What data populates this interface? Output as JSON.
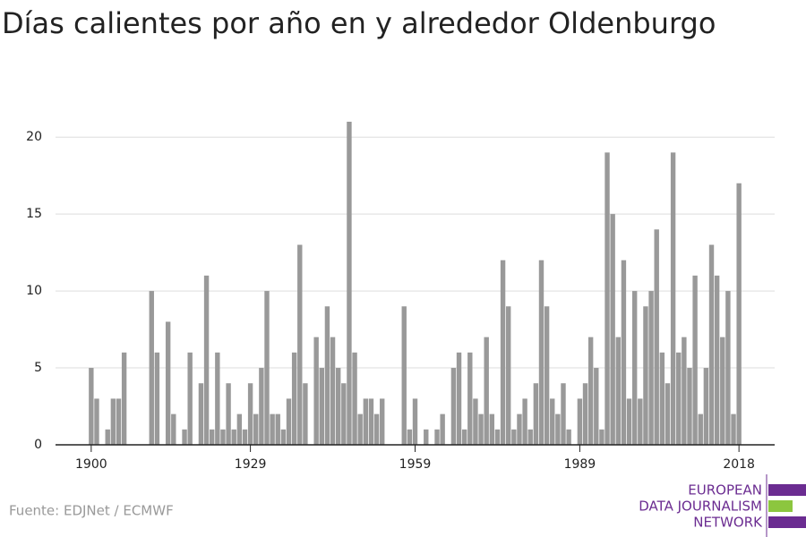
{
  "chart_data": {
    "type": "bar",
    "title": "Días calientes por año en y alrededor Oldenburgo",
    "source": "Fuente: EDJNet / ECMWF",
    "logo": [
      "EUROPEAN",
      "DATA JOURNALISM",
      "NETWORK"
    ],
    "color": "#999999",
    "x": [
      1900,
      1901,
      1902,
      1903,
      1904,
      1905,
      1906,
      1907,
      1908,
      1909,
      1910,
      1911,
      1912,
      1913,
      1914,
      1915,
      1916,
      1917,
      1918,
      1919,
      1920,
      1921,
      1922,
      1923,
      1924,
      1925,
      1926,
      1927,
      1928,
      1929,
      1930,
      1931,
      1932,
      1933,
      1934,
      1935,
      1936,
      1937,
      1938,
      1939,
      1940,
      1941,
      1942,
      1943,
      1944,
      1945,
      1946,
      1947,
      1948,
      1949,
      1950,
      1951,
      1952,
      1953,
      1954,
      1955,
      1956,
      1957,
      1958,
      1959,
      1960,
      1961,
      1962,
      1963,
      1964,
      1965,
      1966,
      1967,
      1968,
      1969,
      1970,
      1971,
      1972,
      1973,
      1974,
      1975,
      1976,
      1977,
      1978,
      1979,
      1980,
      1981,
      1982,
      1983,
      1984,
      1985,
      1986,
      1987,
      1988,
      1989,
      1990,
      1991,
      1992,
      1993,
      1994,
      1995,
      1996,
      1997,
      1998,
      1999,
      2000,
      2001,
      2002,
      2003,
      2004,
      2005,
      2006,
      2007,
      2008,
      2009,
      2010,
      2011,
      2012,
      2013,
      2014,
      2015,
      2016,
      2017,
      2018
    ],
    "values": [
      5,
      3,
      0,
      1,
      3,
      3,
      6,
      0,
      0,
      0,
      0,
      10,
      6,
      0,
      8,
      2,
      0,
      1,
      6,
      0,
      4,
      11,
      1,
      6,
      1,
      4,
      1,
      2,
      1,
      4,
      2,
      5,
      10,
      2,
      2,
      1,
      3,
      6,
      13,
      4,
      0,
      7,
      5,
      9,
      7,
      5,
      4,
      21,
      6,
      2,
      3,
      3,
      2,
      3,
      0,
      0,
      0,
      9,
      1,
      3,
      0,
      1,
      0,
      1,
      2,
      0,
      5,
      6,
      1,
      6,
      3,
      2,
      7,
      2,
      1,
      12,
      9,
      1,
      2,
      3,
      1,
      4,
      12,
      9,
      3,
      2,
      4,
      1,
      0,
      3,
      4,
      7,
      5,
      1,
      19,
      15,
      7,
      12,
      3,
      10,
      3,
      9,
      10,
      14,
      6,
      4,
      19,
      6,
      7,
      5,
      11,
      2,
      5,
      13,
      11,
      7,
      10,
      2,
      17
    ],
    "xlim": [
      1893.5,
      2024.5
    ],
    "xticks": [
      1900,
      1929,
      1959,
      1989,
      2018
    ],
    "ylim": [
      0,
      21
    ],
    "yticks": [
      0,
      5,
      10,
      15,
      20
    ],
    "grid": true
  }
}
